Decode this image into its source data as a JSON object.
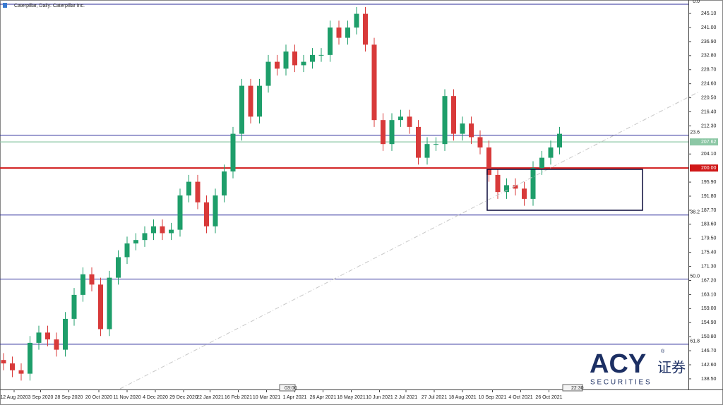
{
  "chart_data": {
    "type": "candlestick",
    "title": "Caterpillar, Daily: Caterpillar Inc.",
    "x": [
      0,
      5,
      10,
      15,
      20,
      25,
      30,
      35,
      40,
      45,
      50,
      55,
      60,
      65,
      70,
      75,
      80,
      85,
      90,
      95,
      100,
      105,
      110,
      115,
      120,
      125,
      130,
      135,
      140,
      145,
      150,
      155,
      160,
      165,
      170,
      175,
      180,
      185,
      190,
      195,
      200,
      205,
      210,
      215,
      220,
      225,
      230,
      235,
      240,
      245,
      250,
      255,
      260,
      265,
      270,
      275,
      280,
      285,
      290,
      295,
      300,
      305,
      310,
      315
    ],
    "open": [
      144,
      143,
      141,
      140,
      149,
      152,
      150,
      147,
      156,
      163,
      169,
      166,
      153,
      168,
      174,
      178,
      179,
      181,
      183,
      181,
      182,
      192,
      196,
      190,
      183,
      192,
      199,
      210,
      224,
      215,
      224,
      231,
      229,
      234,
      230,
      231,
      233,
      233,
      241,
      238,
      241,
      245,
      236,
      214,
      207,
      214,
      215,
      212,
      203,
      207,
      207,
      221,
      210,
      213,
      209,
      206,
      198,
      193,
      195,
      194,
      191,
      200,
      203,
      206
    ],
    "high": [
      146,
      145,
      143,
      151,
      154,
      154,
      152,
      158,
      165,
      171,
      171,
      168,
      170,
      176,
      180,
      181,
      183,
      185,
      185,
      184,
      194,
      198,
      198,
      192,
      194,
      201,
      212,
      226,
      226,
      226,
      233,
      233,
      236,
      236,
      233,
      235,
      235,
      243,
      243,
      243,
      247,
      247,
      238,
      216,
      216,
      217,
      217,
      214,
      209,
      209,
      223,
      223,
      215,
      215,
      211,
      208,
      200,
      197,
      197,
      196,
      202,
      205,
      208,
      212
    ],
    "low": [
      141,
      139,
      138,
      138,
      147,
      148,
      145,
      145,
      154,
      161,
      164,
      151,
      151,
      166,
      172,
      176,
      177,
      179,
      179,
      179,
      180,
      190,
      188,
      181,
      181,
      190,
      197,
      208,
      213,
      213,
      222,
      227,
      227,
      228,
      228,
      229,
      231,
      231,
      236,
      236,
      239,
      234,
      212,
      205,
      205,
      212,
      210,
      201,
      201,
      205,
      205,
      208,
      208,
      207,
      204,
      196,
      191,
      191,
      192,
      189,
      189,
      198,
      201,
      204
    ],
    "close": [
      143,
      141,
      140,
      149,
      152,
      150,
      147,
      156,
      163,
      169,
      166,
      153,
      168,
      174,
      178,
      179,
      181,
      183,
      181,
      182,
      192,
      196,
      190,
      183,
      192,
      199,
      210,
      224,
      215,
      224,
      231,
      229,
      234,
      230,
      231,
      233,
      233,
      241,
      238,
      241,
      245,
      236,
      214,
      207,
      214,
      215,
      212,
      203,
      207,
      207,
      221,
      210,
      213,
      209,
      206,
      198,
      193,
      195,
      194,
      191,
      200,
      203,
      206,
      210
    ],
    "up_color": "#1e9e6a",
    "down_color": "#d83a3a",
    "xlim": [
      -2,
      388
    ],
    "ylim": [
      135.6,
      248.0
    ],
    "xticks": [
      {
        "value": 6,
        "label": "12 Aug 2020"
      },
      {
        "value": 21,
        "label": "3 Sep 2020"
      },
      {
        "value": 37,
        "label": "28 Sep 2020"
      },
      {
        "value": 54,
        "label": "20 Oct 2020"
      },
      {
        "value": 70,
        "label": "11 Nov 2020"
      },
      {
        "value": 86,
        "label": "4 Dec 2020"
      },
      {
        "value": 102,
        "label": "29 Dec 2020"
      },
      {
        "value": 117,
        "label": "22 Jan 2021"
      },
      {
        "value": 133,
        "label": "16 Feb 2021"
      },
      {
        "value": 149,
        "label": "10 Mar 2021"
      },
      {
        "value": 165,
        "label": "1 Apr 2021"
      },
      {
        "value": 181,
        "label": "26 Apr 2021"
      },
      {
        "value": 197,
        "label": "18 May 2021"
      },
      {
        "value": 213,
        "label": "10 Jun 2021"
      },
      {
        "value": 228,
        "label": "2 Jul 2021"
      },
      {
        "value": 244,
        "label": "27 Jul 2021"
      },
      {
        "value": 260,
        "label": "18 Aug 2021"
      },
      {
        "value": 277,
        "label": "10 Sep 2021"
      },
      {
        "value": 293,
        "label": "4 Oct 2021"
      },
      {
        "value": 309,
        "label": "26 Oct 2021"
      }
    ],
    "yticks": [
      {
        "value": 245.1,
        "label": "245.10"
      },
      {
        "value": 241,
        "label": "241.00"
      },
      {
        "value": 236.9,
        "label": "236.90"
      },
      {
        "value": 232.8,
        "label": "232.80"
      },
      {
        "value": 228.7,
        "label": "228.70"
      },
      {
        "value": 224.6,
        "label": "224.60"
      },
      {
        "value": 220.5,
        "label": "220.50"
      },
      {
        "value": 216.4,
        "label": "216.40"
      },
      {
        "value": 212.3,
        "label": "212.30"
      },
      {
        "value": 204.1,
        "label": "204.10"
      },
      {
        "value": 195.9,
        "label": "195.90"
      },
      {
        "value": 191.8,
        "label": "191.80"
      },
      {
        "value": 187.7,
        "label": "187.70"
      },
      {
        "value": 183.6,
        "label": "183.60"
      },
      {
        "value": 179.5,
        "label": "179.50"
      },
      {
        "value": 175.4,
        "label": "175.40"
      },
      {
        "value": 171.3,
        "label": "171.30"
      },
      {
        "value": 167.2,
        "label": "167.20"
      },
      {
        "value": 163.1,
        "label": "163.10"
      },
      {
        "value": 159,
        "label": "159.00"
      },
      {
        "value": 154.9,
        "label": "154.90"
      },
      {
        "value": 150.8,
        "label": "150.80"
      },
      {
        "value": 146.7,
        "label": "146.70"
      },
      {
        "value": 142.6,
        "label": "142.60"
      },
      {
        "value": 138.5,
        "label": "138.50"
      }
    ],
    "fib_levels": [
      {
        "value": 247.8,
        "label": "0.0"
      },
      {
        "value": 209.6,
        "label": "23.6"
      },
      {
        "value": 186.3,
        "label": "38.2"
      },
      {
        "value": 167.6,
        "label": "50.0"
      },
      {
        "value": 148.6,
        "label": "61.8"
      }
    ],
    "fib_color": "#2b2b9a",
    "price_lines": [
      {
        "value": 207.62,
        "label": "207.62",
        "color": "#8cc7a5"
      },
      {
        "value": 200,
        "label": "200.00",
        "color": "#d01818"
      }
    ],
    "time_markers": [
      "03:00",
      "22:30"
    ],
    "watermark": {
      "brand": "ACY",
      "registered": "®",
      "chinese": "证券",
      "sub": "S E C U R I T I E S"
    }
  }
}
